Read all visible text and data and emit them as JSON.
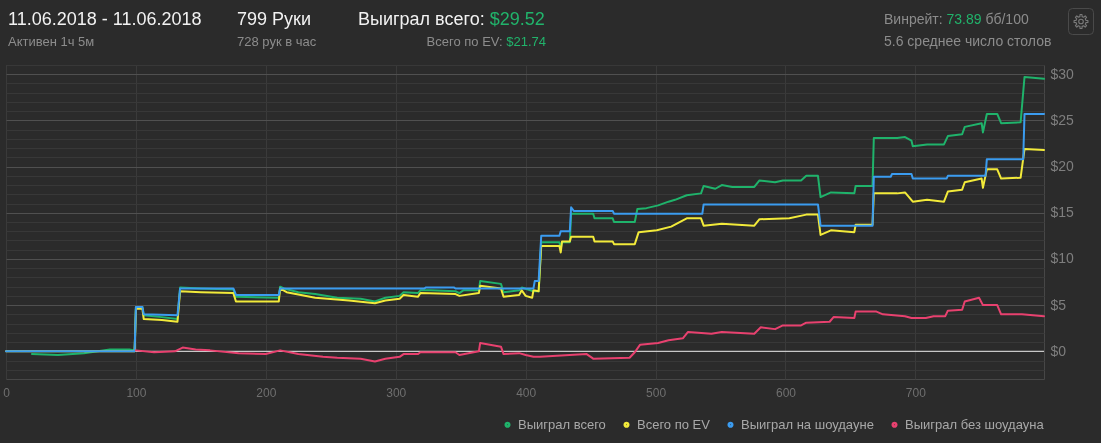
{
  "chart_data": {
    "type": "line",
    "title": "11.06.2018 - 11.06.2018",
    "subtitle": "Активен 1ч 5м",
    "annotations": [
      "799 Руки",
      "728 рук в час",
      "Выиграл всего: $29.52",
      "Всего по EV: $21.74",
      "Винрейт: 73.89 бб/100",
      "5.6 среднее число столов"
    ],
    "xlim": [
      0,
      799
    ],
    "xticks": [
      0,
      100,
      200,
      300,
      400,
      500,
      600,
      700
    ],
    "ylim": [
      -3,
      31
    ],
    "yticks": [
      {
        "value": -2,
        "label": null
      },
      {
        "value": -1,
        "label": null
      },
      {
        "value": 0,
        "label": "$0"
      },
      {
        "value": 1,
        "label": null
      },
      {
        "value": 2,
        "label": null
      },
      {
        "value": 3,
        "label": null
      },
      {
        "value": 4,
        "label": null
      },
      {
        "value": 5,
        "label": "$5"
      },
      {
        "value": 6,
        "label": null
      },
      {
        "value": 7,
        "label": null
      },
      {
        "value": 8,
        "label": null
      },
      {
        "value": 9,
        "label": null
      },
      {
        "value": 10,
        "label": "$10"
      },
      {
        "value": 11,
        "label": null
      },
      {
        "value": 12,
        "label": null
      },
      {
        "value": 13,
        "label": null
      },
      {
        "value": 14,
        "label": null
      },
      {
        "value": 15,
        "label": "$15"
      },
      {
        "value": 16,
        "label": null
      },
      {
        "value": 17,
        "label": null
      },
      {
        "value": 18,
        "label": null
      },
      {
        "value": 19,
        "label": null
      },
      {
        "value": 20,
        "label": "$20"
      },
      {
        "value": 21,
        "label": null
      },
      {
        "value": 22,
        "label": null
      },
      {
        "value": 23,
        "label": null
      },
      {
        "value": 24,
        "label": null
      },
      {
        "value": 25,
        "label": "$25"
      },
      {
        "value": 26,
        "label": null
      },
      {
        "value": 27,
        "label": null
      },
      {
        "value": 28,
        "label": null
      },
      {
        "value": 29,
        "label": null
      },
      {
        "value": 30,
        "label": "$30"
      },
      {
        "value": 31,
        "label": null
      }
    ],
    "grid": true,
    "legend": "bottom right",
    "ref_lines": [
      {
        "axis": "y",
        "value": 0,
        "color": "#c8c8c8"
      }
    ],
    "series": [
      {
        "name": "Выиграл всего",
        "color": "#1fb36b",
        "x": [
          20,
          40,
          60,
          80,
          95,
          99,
          100,
          105,
          106,
          120,
          132,
          134,
          150,
          175,
          177,
          210,
          211,
          214,
          225,
          238,
          255,
          273,
          284,
          292,
          303,
          306,
          317,
          319,
          327,
          346,
          349,
          352,
          364,
          365,
          381,
          383,
          395,
          397,
          406,
          410,
          412,
          426,
          427,
          428,
          434,
          435,
          452,
          453,
          467,
          468,
          484,
          486,
          493,
          502,
          510,
          515,
          524,
          535,
          537,
          546,
          551,
          559,
          576,
          580,
          592,
          598,
          612,
          616,
          625,
          627,
          635,
          653,
          654,
          667,
          668,
          686,
          692,
          697,
          698,
          709,
          722,
          725,
          736,
          738,
          751,
          752,
          755,
          763,
          766,
          781,
          784,
          799
        ],
        "values": [
          -0.3,
          -0.4,
          -0.2,
          0.2,
          0.2,
          0.1,
          4.8,
          4.8,
          3.9,
          3.7,
          3.5,
          6.9,
          6.8,
          6.7,
          5.9,
          5.8,
          7.0,
          6.8,
          6.4,
          6.2,
          5.8,
          5.7,
          5.4,
          5.8,
          6.0,
          6.4,
          6.3,
          6.6,
          6.6,
          6.5,
          6.3,
          6.6,
          6.6,
          7.6,
          7.3,
          6.4,
          6.6,
          6.9,
          6.5,
          6.5,
          11.8,
          11.8,
          11.1,
          11.8,
          11.8,
          14.9,
          14.9,
          14.4,
          14.4,
          14.0,
          14.0,
          15.4,
          15.5,
          15.8,
          16.2,
          16.4,
          16.9,
          17.1,
          17.9,
          17.6,
          18.0,
          17.8,
          17.8,
          18.5,
          18.3,
          18.5,
          18.5,
          19.0,
          19.0,
          16.7,
          17.2,
          17.1,
          17.9,
          17.9,
          23.1,
          23.1,
          23.2,
          22.8,
          22.2,
          22.4,
          22.4,
          23.3,
          23.5,
          24.3,
          24.7,
          23.7,
          25.7,
          25.7,
          24.7,
          24.8,
          29.7,
          29.5
        ]
      },
      {
        "name": "Всего по EV",
        "color": "#f2ea3a",
        "x": [
          0,
          99,
          100,
          105,
          106,
          120,
          132,
          134,
          150,
          175,
          177,
          210,
          211,
          216,
          238,
          264,
          284,
          292,
          303,
          306,
          317,
          319,
          346,
          349,
          364,
          365,
          381,
          383,
          395,
          397,
          400,
          405,
          406,
          410,
          412,
          426,
          427,
          428,
          434,
          435,
          452,
          453,
          467,
          468,
          484,
          487,
          501,
          512,
          524,
          535,
          537,
          551,
          576,
          580,
          603,
          616,
          625,
          627,
          635,
          653,
          654,
          667,
          668,
          686,
          692,
          698,
          709,
          722,
          725,
          736,
          738,
          751,
          752,
          755,
          763,
          766,
          781,
          784,
          799
        ],
        "values": [
          0,
          0,
          4.6,
          4.6,
          3.5,
          3.4,
          3.2,
          6.5,
          6.4,
          6.3,
          5.4,
          5.4,
          6.8,
          6.4,
          5.8,
          5.5,
          5.2,
          5.5,
          5.7,
          6.1,
          5.9,
          6.3,
          6.2,
          6.0,
          6.3,
          7.1,
          6.8,
          5.9,
          6.1,
          6.6,
          6.0,
          5.8,
          6.6,
          6.5,
          11.4,
          11.4,
          10.7,
          11.9,
          11.9,
          12.4,
          12.4,
          11.9,
          11.9,
          11.6,
          11.6,
          12.9,
          13.1,
          13.5,
          14.4,
          14.4,
          13.6,
          13.8,
          13.6,
          14.3,
          14.4,
          14.8,
          14.8,
          12.6,
          13.1,
          12.9,
          13.7,
          13.7,
          17.1,
          17.1,
          17.2,
          16.2,
          16.4,
          16.2,
          17.3,
          17.5,
          18.3,
          18.7,
          17.7,
          19.7,
          19.7,
          18.7,
          18.8,
          21.9,
          21.8
        ]
      },
      {
        "name": "Выиграл на шоудауне",
        "color": "#3b9cf0",
        "x": [
          0,
          99,
          100,
          105,
          106,
          132,
          134,
          175,
          177,
          210,
          211,
          322,
          323,
          345,
          346,
          406,
          407,
          410,
          412,
          426,
          427,
          434,
          435,
          437,
          467,
          468,
          536,
          537,
          625,
          627,
          667,
          668,
          681,
          682,
          697,
          698,
          724,
          725,
          754,
          755,
          783,
          784,
          799
        ],
        "values": [
          0,
          0,
          4.8,
          4.8,
          4.0,
          3.9,
          6.8,
          6.8,
          6.1,
          6.1,
          6.8,
          6.8,
          6.9,
          6.9,
          6.8,
          6.8,
          7.6,
          7.6,
          12.5,
          12.5,
          13.0,
          13.0,
          15.6,
          15.2,
          15.2,
          14.9,
          14.9,
          15.9,
          15.9,
          13.6,
          13.6,
          18.9,
          18.9,
          19.2,
          19.2,
          18.7,
          18.7,
          19.0,
          19.0,
          20.8,
          20.8,
          25.7,
          25.7
        ]
      },
      {
        "name": "Выиграл без шоудауна",
        "color": "#e8416f",
        "x": [
          100,
          114,
          130,
          136,
          146,
          157,
          179,
          200,
          211,
          225,
          244,
          255,
          273,
          284,
          292,
          303,
          306,
          317,
          319,
          346,
          349,
          364,
          365,
          381,
          383,
          395,
          400,
          406,
          411,
          447,
          452,
          480,
          484,
          488,
          502,
          510,
          521,
          525,
          543,
          551,
          576,
          581,
          592,
          598,
          612,
          616,
          634,
          637,
          653,
          654,
          670,
          675,
          692,
          697,
          708,
          714,
          723,
          725,
          736,
          738,
          749,
          752,
          763,
          766,
          782,
          799
        ],
        "values": [
          0.1,
          -0.1,
          0.0,
          0.4,
          0.2,
          0.1,
          -0.2,
          -0.3,
          0.1,
          -0.3,
          -0.6,
          -0.7,
          -0.8,
          -1.1,
          -0.8,
          -0.6,
          -0.3,
          -0.3,
          -0.1,
          -0.1,
          -0.4,
          0.0,
          0.9,
          0.5,
          -0.3,
          -0.2,
          -0.4,
          -0.6,
          -0.6,
          -0.3,
          -0.8,
          -0.7,
          -0.1,
          0.7,
          0.9,
          1.2,
          1.4,
          2.1,
          1.9,
          2.1,
          1.9,
          2.6,
          2.4,
          2.8,
          2.8,
          3.1,
          3.2,
          3.7,
          3.6,
          4.3,
          4.3,
          4.0,
          3.8,
          3.6,
          3.6,
          3.8,
          3.8,
          4.4,
          4.5,
          5.4,
          5.8,
          5.0,
          5.0,
          4.0,
          4.0,
          3.8
        ]
      }
    ]
  }
}
